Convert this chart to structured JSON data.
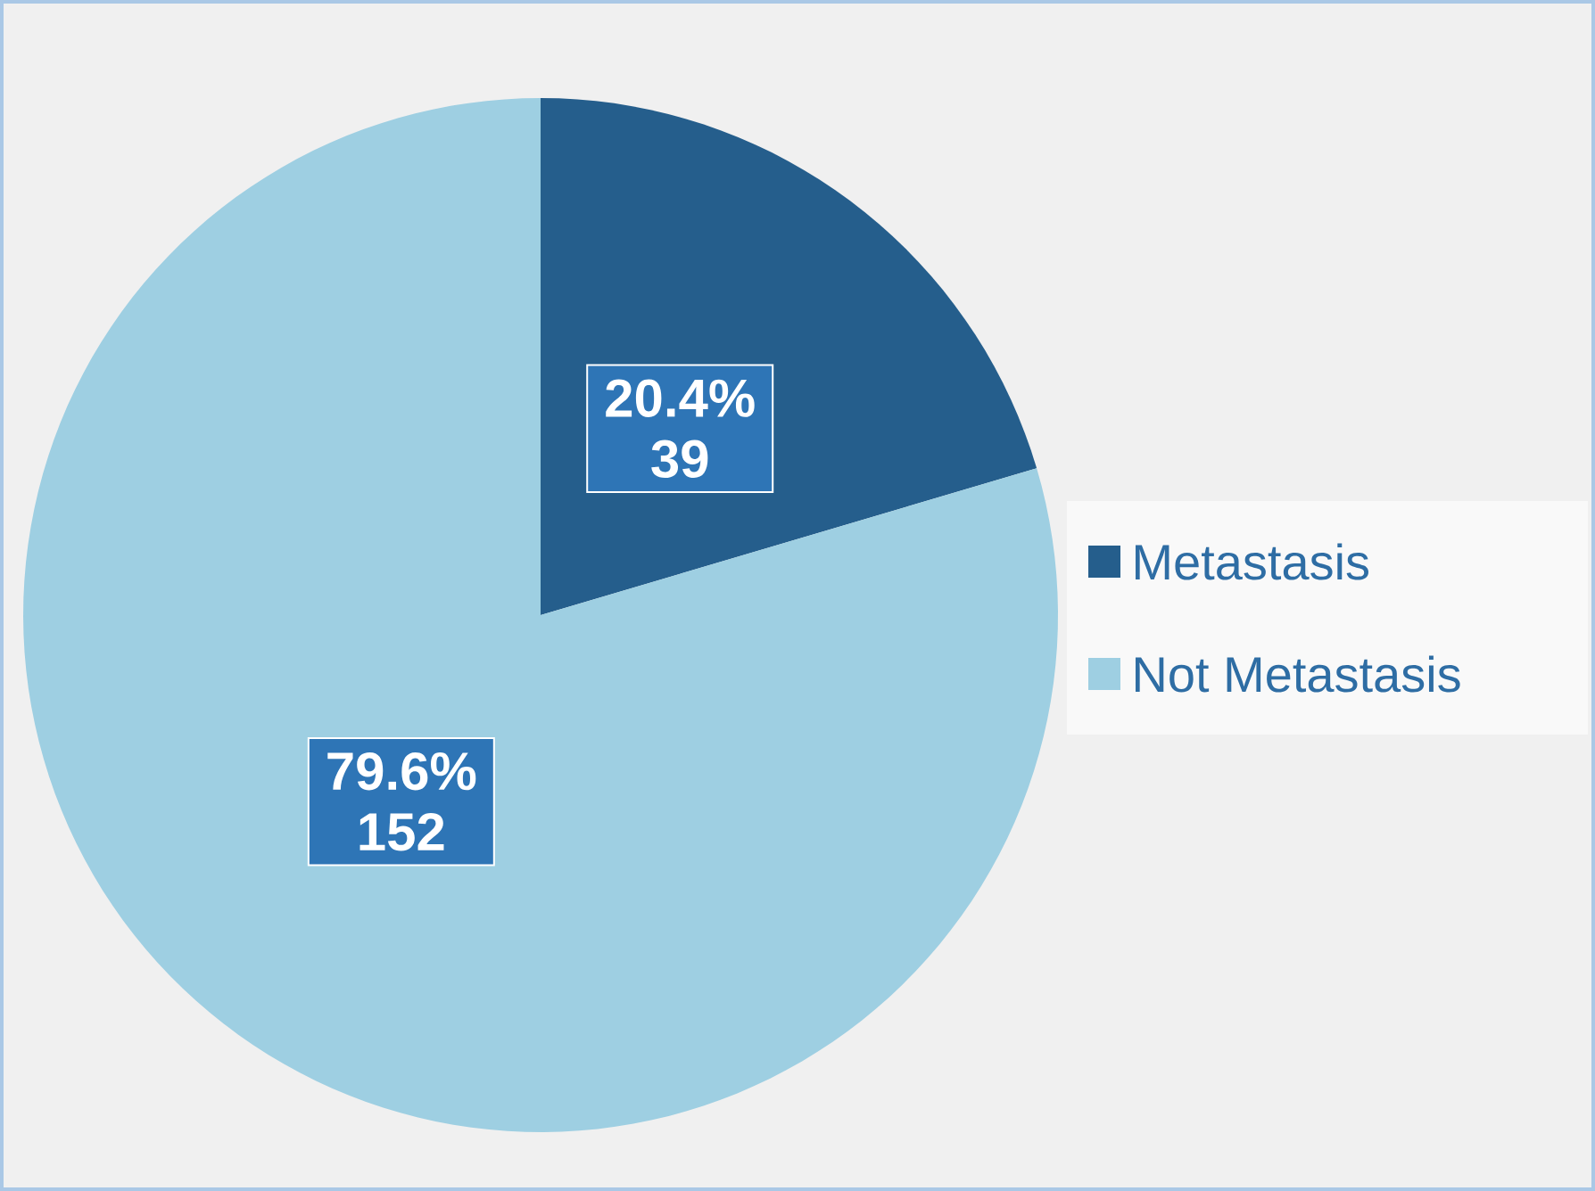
{
  "chart_data": {
    "type": "pie",
    "categories": [
      "Metastasis",
      "Not Metastasis"
    ],
    "values": [
      39,
      152
    ],
    "colors": [
      "#255e8c",
      "#9ecfe2"
    ],
    "value_labels": [
      "20.4% 39",
      "79.6% 152"
    ],
    "legend": "right"
  }
}
